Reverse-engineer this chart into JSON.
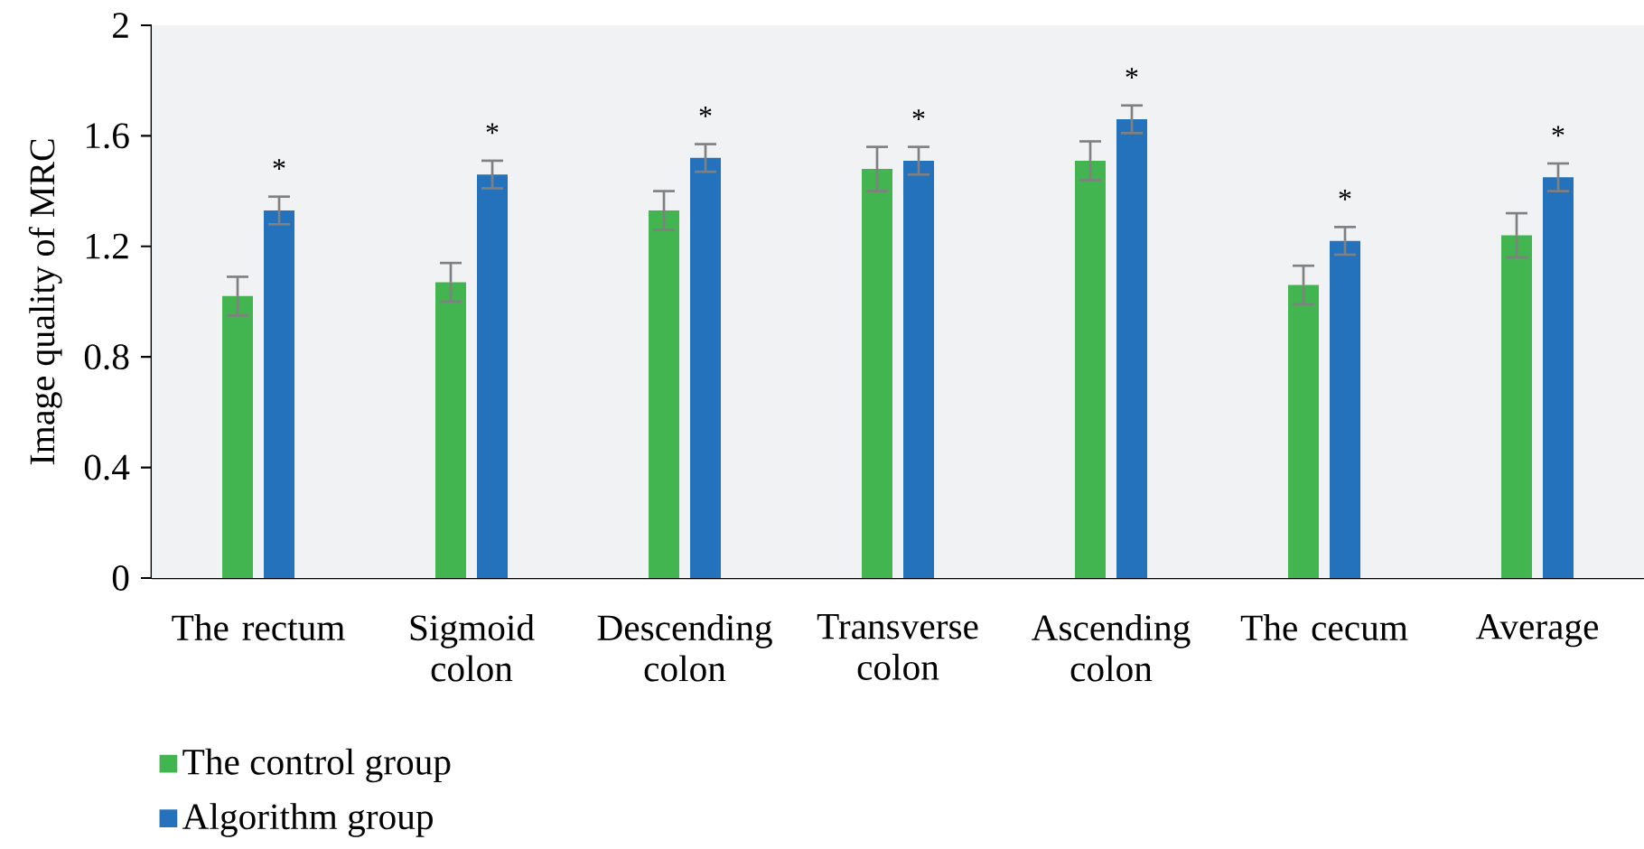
{
  "chart_data": {
    "type": "bar",
    "ylabel": "Image quality of MRC",
    "categories": [
      "The rectum",
      "Sigmoid colon",
      "Descending colon",
      "Transverse colon",
      "Ascending colon",
      "The cecum",
      "Average"
    ],
    "series": [
      {
        "name": "The control group",
        "color": "#43b550",
        "values": [
          1.02,
          1.07,
          1.33,
          1.48,
          1.51,
          1.06,
          1.24
        ],
        "errors": [
          0.07,
          0.07,
          0.07,
          0.08,
          0.07,
          0.07,
          0.08
        ]
      },
      {
        "name": "Algorithm group",
        "color": "#2372bb",
        "values": [
          1.33,
          1.46,
          1.52,
          1.51,
          1.66,
          1.22,
          1.45
        ],
        "errors": [
          0.05,
          0.05,
          0.05,
          0.05,
          0.05,
          0.05,
          0.05
        ]
      }
    ],
    "ylim": [
      0,
      2
    ],
    "yticks": [
      0,
      0.4,
      0.8,
      1.2,
      1.6,
      2
    ],
    "grid": false,
    "legend": "bottom left",
    "annotations": [
      "*",
      "*",
      "*",
      "*",
      "*",
      "*",
      "*"
    ]
  }
}
